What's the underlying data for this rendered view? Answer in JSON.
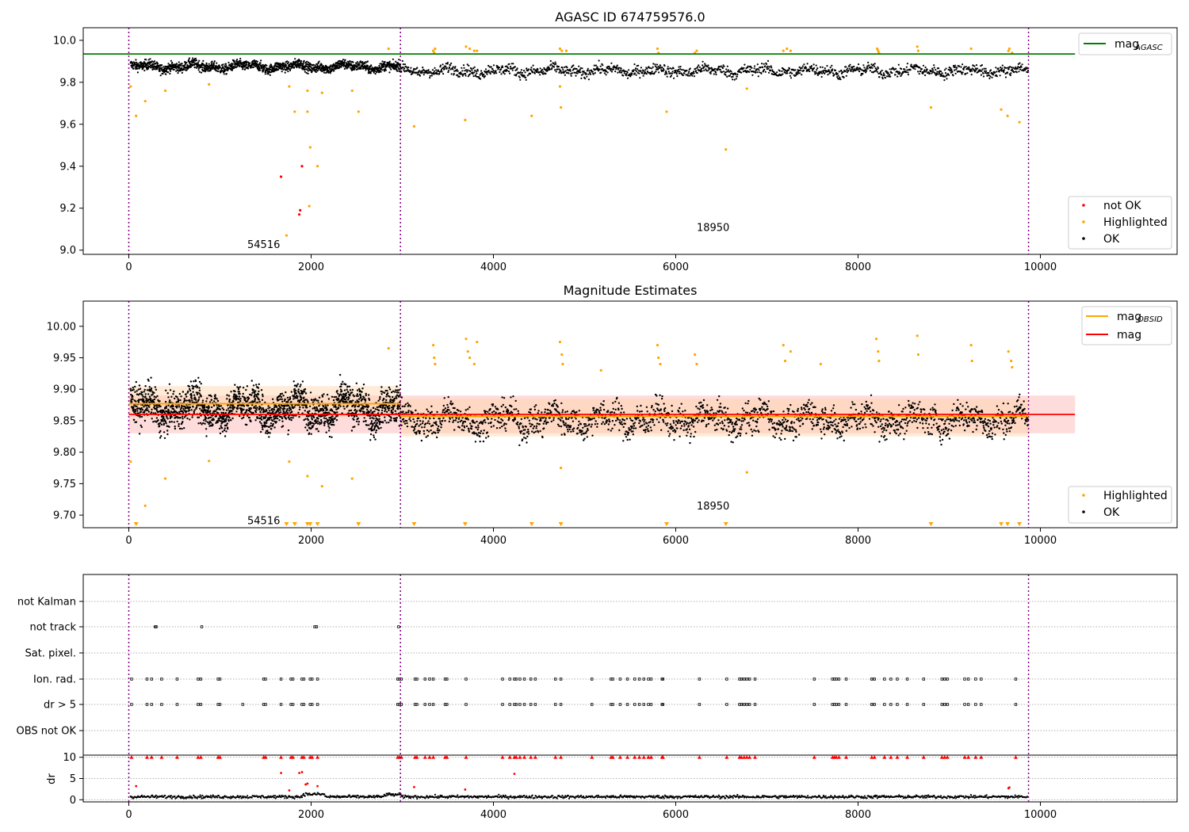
{
  "figure": {
    "colors": {
      "ok": "#000000",
      "highlighted": "#ffa500",
      "not_ok": "#ff0000",
      "agasc_line": "#008000",
      "obsid_line": "#ffa500",
      "mag_line": "#ff0000",
      "obsid_boundary": "#800080",
      "mag_band": "#ffc0c0",
      "obsid_band": "#ffd3a6"
    }
  },
  "chart_data": [
    {
      "type": "scatter",
      "title": "AGASC ID 674759576.0",
      "xlim": [
        -500,
        11500
      ],
      "ylim": [
        8.98,
        10.06
      ],
      "x_ticks": [
        0,
        2000,
        4000,
        6000,
        8000,
        10000
      ],
      "y_ticks": [
        9.0,
        9.2,
        9.4,
        9.6,
        9.8,
        10.0
      ],
      "y_tick_labels": [
        "9.0",
        "9.2",
        "9.4",
        "9.6",
        "9.8",
        "10.0"
      ],
      "obsid_boundaries": [
        0,
        2980,
        9870
      ],
      "obsid_labels": [
        {
          "text": "54516",
          "x": 1300,
          "y": 9.03
        },
        {
          "text": "18950",
          "x": 6230,
          "y": 9.11
        }
      ],
      "mag_agasc": {
        "value": 9.935,
        "x_range": [
          -500,
          10380
        ]
      },
      "legend_top": [
        {
          "label": "mag",
          "subscript": "AGASC",
          "kind": "line",
          "color_key": "agasc_line"
        }
      ],
      "legend_bottom": [
        {
          "label": "not OK",
          "kind": "dot",
          "color_key": "not_ok"
        },
        {
          "label": "Highlighted",
          "kind": "dot",
          "color_key": "highlighted"
        },
        {
          "label": "OK",
          "kind": "dot",
          "color_key": "ok"
        }
      ],
      "series": [
        {
          "name": "not OK",
          "color_key": "not_ok",
          "points": [
            [
              1670,
              9.35
            ],
            [
              1900,
              9.4
            ],
            [
              1880,
              9.19
            ],
            [
              1870,
              9.17
            ]
          ]
        },
        {
          "name": "Highlighted",
          "color_key": "highlighted",
          "points": [
            [
              20,
              9.78
            ],
            [
              80,
              9.64
            ],
            [
              180,
              9.71
            ],
            [
              400,
              9.76
            ],
            [
              880,
              9.79
            ],
            [
              1760,
              9.78
            ],
            [
              1820,
              9.66
            ],
            [
              1960,
              9.76
            ],
            [
              1960,
              9.66
            ],
            [
              1990,
              9.49
            ],
            [
              2070,
              9.4
            ],
            [
              1980,
              9.21
            ],
            [
              1730,
              9.07
            ],
            [
              2120,
              9.75
            ],
            [
              2450,
              9.76
            ],
            [
              2520,
              9.66
            ],
            [
              2850,
              9.96
            ],
            [
              3130,
              9.59
            ],
            [
              3690,
              9.62
            ],
            [
              4420,
              9.64
            ],
            [
              4740,
              9.68
            ],
            [
              4730,
              9.78
            ],
            [
              5900,
              9.66
            ],
            [
              6550,
              9.48
            ],
            [
              6780,
              9.77
            ],
            [
              8800,
              9.68
            ],
            [
              9570,
              9.67
            ],
            [
              9640,
              9.64
            ],
            [
              9770,
              9.61
            ],
            [
              3340,
              9.95
            ],
            [
              3350,
              9.94
            ],
            [
              3360,
              9.96
            ],
            [
              3700,
              9.97
            ],
            [
              3740,
              9.96
            ],
            [
              3790,
              9.95
            ],
            [
              3820,
              9.95
            ],
            [
              4730,
              9.96
            ],
            [
              4750,
              9.95
            ],
            [
              4800,
              9.95
            ],
            [
              5800,
              9.96
            ],
            [
              5810,
              9.94
            ],
            [
              6210,
              9.94
            ],
            [
              6230,
              9.95
            ],
            [
              7180,
              9.95
            ],
            [
              7220,
              9.96
            ],
            [
              7260,
              9.95
            ],
            [
              8210,
              9.96
            ],
            [
              8220,
              9.95
            ],
            [
              8230,
              9.94
            ],
            [
              8650,
              9.97
            ],
            [
              8660,
              9.95
            ],
            [
              9240,
              9.96
            ],
            [
              9650,
              9.95
            ],
            [
              9690,
              9.94
            ],
            [
              9660,
              9.96
            ]
          ]
        },
        {
          "name": "OK",
          "color_key": "ok",
          "band_segments": [
            {
              "x": [
                20,
                2980
              ],
              "center": 9.875,
              "amp": 0.045
            },
            {
              "x": [
                2980,
                9870
              ],
              "center": 9.855,
              "amp": 0.05
            }
          ]
        }
      ]
    },
    {
      "type": "scatter",
      "title": "Magnitude Estimates",
      "xlim": [
        -500,
        11500
      ],
      "ylim": [
        9.68,
        10.04
      ],
      "x_ticks": [
        0,
        2000,
        4000,
        6000,
        8000,
        10000
      ],
      "y_ticks": [
        9.7,
        9.75,
        9.8,
        9.85,
        9.9,
        9.95,
        10.0
      ],
      "y_tick_labels": [
        "9.70",
        "9.75",
        "9.80",
        "9.85",
        "9.90",
        "9.95",
        "10.00"
      ],
      "obsid_boundaries": [
        0,
        2980,
        9870
      ],
      "obsid_labels": [
        {
          "text": "54516",
          "x": 1300,
          "y": 9.692
        },
        {
          "text": "18950",
          "x": 6230,
          "y": 9.715
        }
      ],
      "mag": {
        "value": 9.86,
        "band": [
          9.83,
          9.89
        ],
        "x_range": [
          0,
          10380
        ]
      },
      "mag_obsid": [
        {
          "x": [
            0,
            2980
          ],
          "value": 9.877,
          "band": [
            9.855,
            9.905
          ]
        },
        {
          "x": [
            2980,
            9870
          ],
          "value": 9.857,
          "band": [
            9.825,
            9.885
          ]
        }
      ],
      "legend_top": [
        {
          "label": "mag",
          "subscript": "OBSID",
          "kind": "line",
          "color_key": "obsid_line"
        },
        {
          "label": "mag",
          "kind": "line",
          "color_key": "mag_line"
        }
      ],
      "legend_bottom": [
        {
          "label": "Highlighted",
          "kind": "dot",
          "color_key": "highlighted"
        },
        {
          "label": "OK",
          "kind": "dot",
          "color_key": "ok"
        }
      ],
      "series": [
        {
          "name": "Highlighted",
          "color_key": "highlighted",
          "points": [
            [
              20,
              9.785
            ],
            [
              180,
              9.715
            ],
            [
              400,
              9.758
            ],
            [
              880,
              9.786
            ],
            [
              1760,
              9.785
            ],
            [
              1960,
              9.762
            ],
            [
              2120,
              9.746
            ],
            [
              2450,
              9.758
            ],
            [
              2850,
              9.965
            ],
            [
              4740,
              9.775
            ],
            [
              6780,
              9.768
            ],
            [
              3340,
              9.97
            ],
            [
              3350,
              9.95
            ],
            [
              3360,
              9.94
            ],
            [
              3700,
              9.98
            ],
            [
              3720,
              9.96
            ],
            [
              3740,
              9.95
            ],
            [
              3790,
              9.94
            ],
            [
              3820,
              9.975
            ],
            [
              4730,
              9.975
            ],
            [
              4750,
              9.955
            ],
            [
              4760,
              9.94
            ],
            [
              5180,
              9.93
            ],
            [
              5800,
              9.97
            ],
            [
              5810,
              9.95
            ],
            [
              5830,
              9.94
            ],
            [
              6210,
              9.955
            ],
            [
              6230,
              9.94
            ],
            [
              7180,
              9.97
            ],
            [
              7200,
              9.945
            ],
            [
              7260,
              9.96
            ],
            [
              7590,
              9.94
            ],
            [
              8200,
              9.98
            ],
            [
              8220,
              9.96
            ],
            [
              8230,
              9.945
            ],
            [
              8650,
              9.985
            ],
            [
              8660,
              9.955
            ],
            [
              9240,
              9.97
            ],
            [
              9250,
              9.945
            ],
            [
              9650,
              9.96
            ],
            [
              9680,
              9.945
            ],
            [
              9690,
              9.935
            ]
          ]
        },
        {
          "name": "OK",
          "color_key": "ok",
          "band_segments": [
            {
              "x": [
                20,
                2980
              ],
              "center": 9.87,
              "amp": 0.055
            },
            {
              "x": [
                2980,
                9870
              ],
              "center": 9.852,
              "amp": 0.045
            }
          ]
        }
      ],
      "limit_markers_x": [
        80,
        1730,
        1820,
        1960,
        1990,
        2070,
        2520,
        3130,
        3690,
        4420,
        4740,
        5900,
        6550,
        8800,
        9570,
        9640,
        9770
      ]
    },
    {
      "type": "scatter",
      "title": "",
      "xlim": [
        -500,
        11500
      ],
      "flag_rows": [
        "not Kalman",
        "not track",
        "Sat. pixel.",
        "Ion. rad.",
        "dr > 5",
        "OBS not OK"
      ],
      "flag_points": {
        "not track": [
          290,
          300,
          800,
          2040,
          2060,
          2960
        ],
        "Ion. rad.": [
          30,
          200,
          250,
          360,
          530,
          760,
          790,
          980,
          1000,
          1480,
          1500,
          1670,
          1780,
          1800,
          1900,
          1920,
          1990,
          2010,
          2070,
          2950,
          2970,
          2990,
          3140,
          3160,
          3250,
          3300,
          3340,
          3470,
          3490,
          3700,
          4100,
          4180,
          4230,
          4250,
          4290,
          4340,
          4410,
          4460,
          4680,
          4740,
          5080,
          5290,
          5310,
          5390,
          5470,
          5550,
          5600,
          5650,
          5700,
          5730,
          5850,
          5860,
          6260,
          6560,
          6700,
          6720,
          6750,
          6780,
          6810,
          6870,
          7520,
          7720,
          7740,
          7760,
          7790,
          7870,
          8150,
          8180,
          8290,
          8360,
          8430,
          8540,
          8720,
          8920,
          8950,
          8980,
          9170,
          9210,
          9290,
          9350,
          9730
        ],
        "dr > 5": [
          30,
          200,
          250,
          360,
          530,
          760,
          790,
          980,
          1000,
          1250,
          1480,
          1500,
          1670,
          1780,
          1800,
          1900,
          1920,
          1990,
          2010,
          2070,
          2950,
          2970,
          2990,
          3140,
          3160,
          3250,
          3300,
          3340,
          3470,
          3490,
          3700,
          4100,
          4180,
          4230,
          4250,
          4290,
          4340,
          4410,
          4460,
          4680,
          4740,
          5080,
          5290,
          5310,
          5390,
          5470,
          5550,
          5600,
          5650,
          5700,
          5730,
          5850,
          5860,
          6260,
          6560,
          6700,
          6720,
          6750,
          6780,
          6810,
          6870,
          7520,
          7720,
          7740,
          7760,
          7790,
          7870,
          8150,
          8180,
          8290,
          8360,
          8430,
          8540,
          8720,
          8920,
          8950,
          8980,
          9170,
          9210,
          9290,
          9350,
          9730
        ]
      },
      "dr": {
        "ylim": [
          -0.5,
          10.5
        ],
        "y_ticks": [
          0,
          5,
          10
        ],
        "y_tick_labels": [
          "0",
          "5",
          "10"
        ],
        "ylabel": "dr",
        "clipped_value": 10,
        "outliers": [
          [
            80,
            3.2
          ],
          [
            1670,
            6.3
          ],
          [
            1760,
            2.2
          ],
          [
            1870,
            6.3
          ],
          [
            1900,
            6.5
          ],
          [
            1940,
            3.6
          ],
          [
            1960,
            3.8
          ],
          [
            2070,
            3.2
          ],
          [
            3130,
            3.0
          ],
          [
            3690,
            2.4
          ],
          [
            4230,
            6.1
          ],
          [
            9650,
            2.7
          ],
          [
            9660,
            2.9
          ]
        ],
        "noise_band": {
          "x": [
            20,
            9870
          ],
          "center": 0.7,
          "amp": 0.6
        }
      },
      "obsid_boundaries": [
        0,
        2980,
        9870
      ],
      "x_ticks": [
        0,
        2000,
        4000,
        6000,
        8000,
        10000
      ]
    }
  ]
}
